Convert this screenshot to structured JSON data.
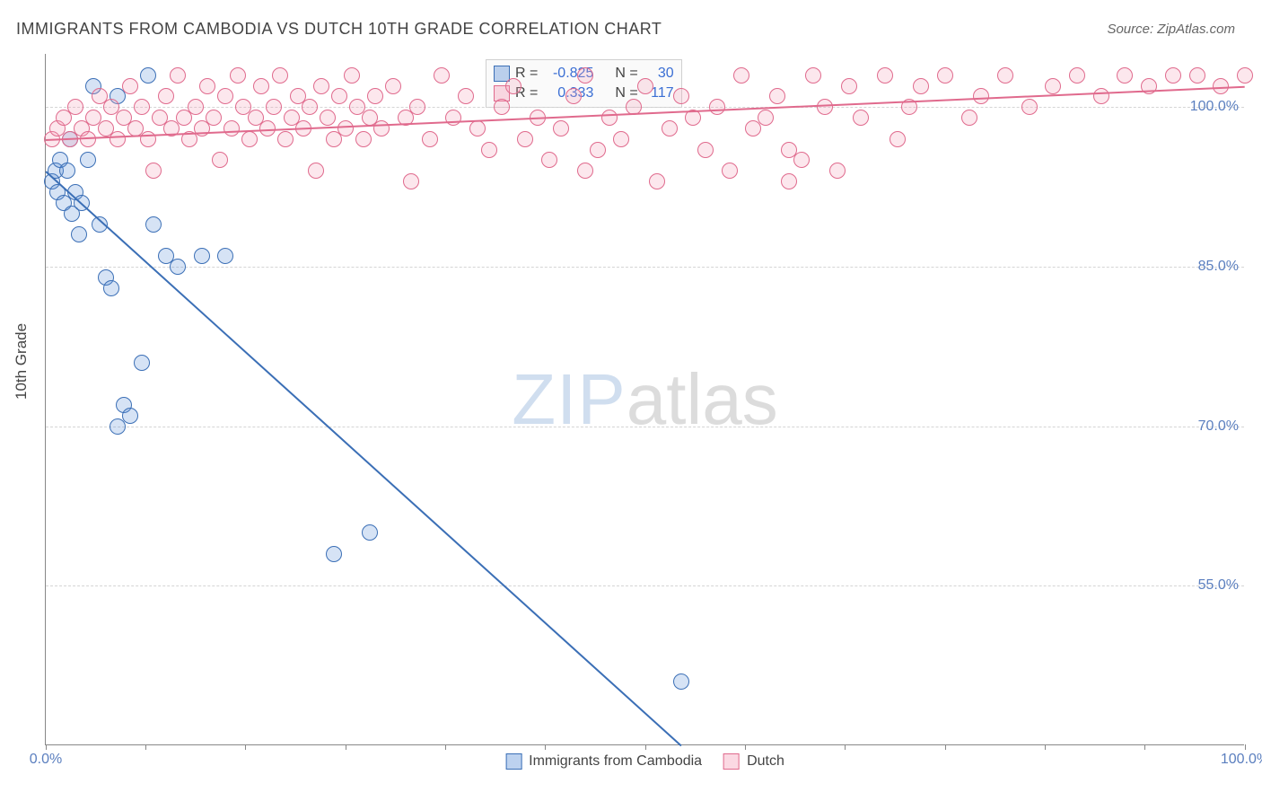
{
  "title": "IMMIGRANTS FROM CAMBODIA VS DUTCH 10TH GRADE CORRELATION CHART",
  "source_label": "Source: ZipAtlas.com",
  "ylabel": "10th Grade",
  "watermark": {
    "part1": "ZIP",
    "part2": "atlas"
  },
  "chart": {
    "type": "scatter",
    "background_color": "#ffffff",
    "grid_color": "#d5d5d5",
    "axis_color": "#888888",
    "label_color": "#5b7fbf",
    "text_color": "#444444",
    "xlim": [
      0,
      100
    ],
    "ylim": [
      40,
      105
    ],
    "yticks": [
      55.0,
      70.0,
      85.0,
      100.0
    ],
    "ytick_labels": [
      "55.0%",
      "70.0%",
      "85.0%",
      "100.0%"
    ],
    "xtick_positions": [
      0,
      8.3,
      16.6,
      25,
      33.3,
      41.6,
      50,
      58.3,
      66.6,
      75,
      83.3,
      91.6,
      100
    ],
    "xtick_labels": {
      "first": "0.0%",
      "last": "100.0%"
    },
    "marker_radius": 9,
    "marker_border_width": 1.5,
    "marker_fill_opacity": 0.25,
    "trend_line_width": 2
  },
  "series": [
    {
      "id": "cambodia",
      "name": "Immigrants from Cambodia",
      "color": "#5b8fd6",
      "border_color": "#3b6fb6",
      "R": "-0.825",
      "N": "30",
      "trend": {
        "x1": 0,
        "y1": 94,
        "x2": 53,
        "y2": 40
      },
      "points": [
        [
          0.5,
          93
        ],
        [
          0.8,
          94
        ],
        [
          1.0,
          92
        ],
        [
          1.2,
          95
        ],
        [
          1.5,
          91
        ],
        [
          1.8,
          94
        ],
        [
          2.0,
          97
        ],
        [
          2.2,
          90
        ],
        [
          2.5,
          92
        ],
        [
          2.8,
          88
        ],
        [
          3.0,
          91
        ],
        [
          3.5,
          95
        ],
        [
          4.0,
          102
        ],
        [
          4.5,
          89
        ],
        [
          5.0,
          84
        ],
        [
          5.5,
          83
        ],
        [
          6.0,
          70
        ],
        [
          6.5,
          72
        ],
        [
          7.0,
          71
        ],
        [
          8.0,
          76
        ],
        [
          8.5,
          103
        ],
        [
          9.0,
          89
        ],
        [
          10.0,
          86
        ],
        [
          11.0,
          85
        ],
        [
          13.0,
          86
        ],
        [
          15.0,
          86
        ],
        [
          24.0,
          58
        ],
        [
          27.0,
          60
        ],
        [
          53.0,
          46
        ],
        [
          6.0,
          101
        ]
      ]
    },
    {
      "id": "dutch",
      "name": "Dutch",
      "color": "#f4a0b9",
      "border_color": "#e06a8d",
      "R": "0.333",
      "N": "117",
      "trend": {
        "x1": 0,
        "y1": 97,
        "x2": 100,
        "y2": 102
      },
      "points": [
        [
          0.5,
          97
        ],
        [
          1,
          98
        ],
        [
          1.5,
          99
        ],
        [
          2,
          97
        ],
        [
          2.5,
          100
        ],
        [
          3,
          98
        ],
        [
          3.5,
          97
        ],
        [
          4,
          99
        ],
        [
          4.5,
          101
        ],
        [
          5,
          98
        ],
        [
          5.5,
          100
        ],
        [
          6,
          97
        ],
        [
          6.5,
          99
        ],
        [
          7,
          102
        ],
        [
          7.5,
          98
        ],
        [
          8,
          100
        ],
        [
          8.5,
          97
        ],
        [
          9,
          94
        ],
        [
          9.5,
          99
        ],
        [
          10,
          101
        ],
        [
          10.5,
          98
        ],
        [
          11,
          103
        ],
        [
          11.5,
          99
        ],
        [
          12,
          97
        ],
        [
          12.5,
          100
        ],
        [
          13,
          98
        ],
        [
          13.5,
          102
        ],
        [
          14,
          99
        ],
        [
          14.5,
          95
        ],
        [
          15,
          101
        ],
        [
          15.5,
          98
        ],
        [
          16,
          103
        ],
        [
          16.5,
          100
        ],
        [
          17,
          97
        ],
        [
          17.5,
          99
        ],
        [
          18,
          102
        ],
        [
          18.5,
          98
        ],
        [
          19,
          100
        ],
        [
          19.5,
          103
        ],
        [
          20,
          97
        ],
        [
          20.5,
          99
        ],
        [
          21,
          101
        ],
        [
          21.5,
          98
        ],
        [
          22,
          100
        ],
        [
          22.5,
          94
        ],
        [
          23,
          102
        ],
        [
          23.5,
          99
        ],
        [
          24,
          97
        ],
        [
          24.5,
          101
        ],
        [
          25,
          98
        ],
        [
          25.5,
          103
        ],
        [
          26,
          100
        ],
        [
          26.5,
          97
        ],
        [
          27,
          99
        ],
        [
          27.5,
          101
        ],
        [
          28,
          98
        ],
        [
          29,
          102
        ],
        [
          30,
          99
        ],
        [
          30.5,
          93
        ],
        [
          31,
          100
        ],
        [
          32,
          97
        ],
        [
          33,
          103
        ],
        [
          34,
          99
        ],
        [
          35,
          101
        ],
        [
          36,
          98
        ],
        [
          37,
          96
        ],
        [
          38,
          100
        ],
        [
          39,
          102
        ],
        [
          40,
          97
        ],
        [
          41,
          99
        ],
        [
          42,
          95
        ],
        [
          43,
          98
        ],
        [
          44,
          101
        ],
        [
          45,
          103
        ],
        [
          46,
          96
        ],
        [
          47,
          99
        ],
        [
          48,
          97
        ],
        [
          49,
          100
        ],
        [
          50,
          102
        ],
        [
          51,
          93
        ],
        [
          52,
          98
        ],
        [
          53,
          101
        ],
        [
          54,
          99
        ],
        [
          55,
          96
        ],
        [
          56,
          100
        ],
        [
          57,
          94
        ],
        [
          58,
          103
        ],
        [
          59,
          98
        ],
        [
          60,
          99
        ],
        [
          61,
          101
        ],
        [
          62,
          96
        ],
        [
          63,
          95
        ],
        [
          64,
          103
        ],
        [
          65,
          100
        ],
        [
          66,
          94
        ],
        [
          67,
          102
        ],
        [
          68,
          99
        ],
        [
          70,
          103
        ],
        [
          71,
          97
        ],
        [
          72,
          100
        ],
        [
          73,
          102
        ],
        [
          75,
          103
        ],
        [
          77,
          99
        ],
        [
          78,
          101
        ],
        [
          80,
          103
        ],
        [
          82,
          100
        ],
        [
          84,
          102
        ],
        [
          86,
          103
        ],
        [
          88,
          101
        ],
        [
          90,
          103
        ],
        [
          92,
          102
        ],
        [
          94,
          103
        ],
        [
          96,
          103
        ],
        [
          98,
          102
        ],
        [
          100,
          103
        ],
        [
          62,
          93
        ],
        [
          45,
          94
        ]
      ]
    }
  ],
  "legend_stats": {
    "R_label": "R  =",
    "N_label": "N  ="
  },
  "legend_bottom": {
    "items": [
      "Immigrants from Cambodia",
      "Dutch"
    ]
  }
}
